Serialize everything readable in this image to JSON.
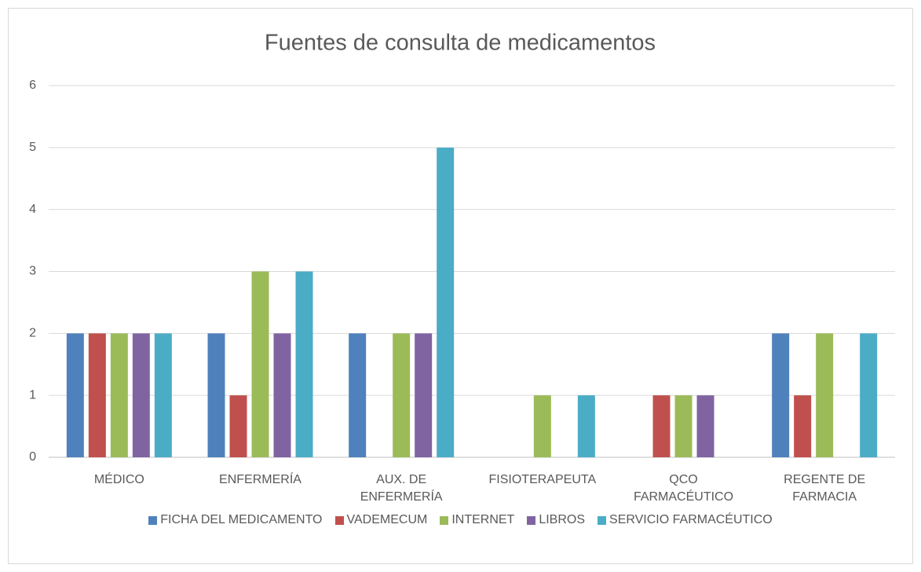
{
  "chart_data": {
    "type": "bar",
    "title": "Fuentes de consulta de medicamentos",
    "categories": [
      "MÉDICO",
      "ENFERMERÍA",
      "AUX. DE ENFERMERÍA",
      "FISIOTERAPEUTA",
      "QCO FARMACÉUTICO",
      "REGENTE DE FARMACIA"
    ],
    "series": [
      {
        "name": "FICHA DEL MEDICAMENTO",
        "color": "#4f81bd",
        "values": [
          2,
          2,
          2,
          0,
          0,
          2
        ]
      },
      {
        "name": "VADEMECUM",
        "color": "#c0504d",
        "values": [
          2,
          1,
          0,
          0,
          1,
          1
        ]
      },
      {
        "name": "INTERNET",
        "color": "#9bbb59",
        "values": [
          2,
          3,
          2,
          1,
          1,
          2
        ]
      },
      {
        "name": "LIBROS",
        "color": "#8064a2",
        "values": [
          2,
          2,
          2,
          0,
          1,
          0
        ]
      },
      {
        "name": "SERVICIO FARMACÉUTICO",
        "color": "#4bacc6",
        "values": [
          2,
          3,
          5,
          1,
          0,
          2
        ]
      }
    ],
    "ylim": [
      0,
      6
    ],
    "yticks": [
      0,
      1,
      2,
      3,
      4,
      5,
      6
    ],
    "grid": true,
    "legend": "bottom"
  }
}
